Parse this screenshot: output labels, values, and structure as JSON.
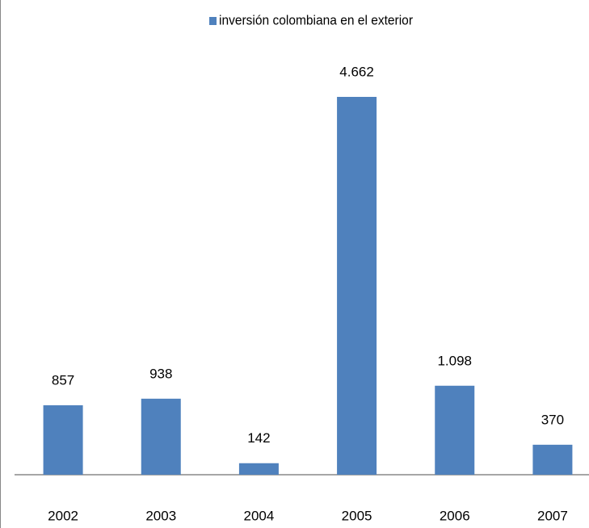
{
  "chart_data": {
    "type": "bar",
    "categories": [
      "2002",
      "2003",
      "2004",
      "2005",
      "2006",
      "2007"
    ],
    "series": [
      {
        "name": "inversión colombiana en el exterior",
        "color": "#4f81bd",
        "values": [
          857,
          938,
          142,
          4662,
          1098,
          370
        ],
        "value_labels": [
          "857",
          "938",
          "142",
          "4.662",
          "1.098",
          "370"
        ]
      }
    ]
  }
}
